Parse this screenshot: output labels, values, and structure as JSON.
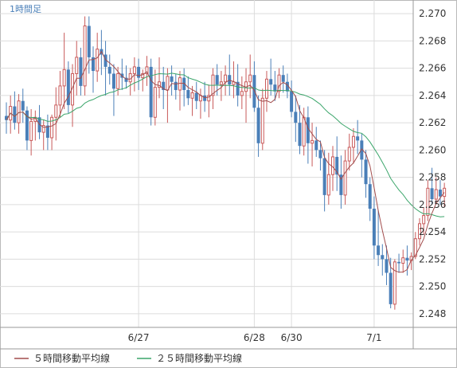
{
  "chart_data": {
    "type": "candlestick",
    "timeframe_label": "1時間足",
    "ylim": [
      2.247,
      2.271
    ],
    "y_ticks": [
      "2.248",
      "2.250",
      "2.252",
      "2.254",
      "2.256",
      "2.258",
      "2.260",
      "2.262",
      "2.264",
      "2.266",
      "2.268",
      "2.270"
    ],
    "x_ticks": [
      {
        "label": "6/27",
        "index": 32
      },
      {
        "label": "6/28",
        "index": 60
      },
      {
        "label": "6/30",
        "index": 69
      },
      {
        "label": "7/1",
        "index": 89
      }
    ],
    "legend": [
      {
        "label": "５時間移動平均線",
        "color": "#a24d4d"
      },
      {
        "label": "２５時間移動平均線",
        "color": "#3aa56a"
      }
    ],
    "colors": {
      "up": "#c85a5a",
      "down": "#4a7fb8",
      "ma5": "#a24d4d",
      "ma25": "#3aa56a",
      "grid": "#dcdcdc"
    },
    "candles": [
      [
        2.2625,
        2.2635,
        2.2612,
        2.2622
      ],
      [
        2.2622,
        2.264,
        2.2612,
        2.2632
      ],
      [
        2.2632,
        2.2643,
        2.2615,
        2.262
      ],
      [
        2.262,
        2.2641,
        2.2612,
        2.2636
      ],
      [
        2.2636,
        2.2645,
        2.262,
        2.2629
      ],
      [
        2.2629,
        2.2632,
        2.26,
        2.2607
      ],
      [
        2.2607,
        2.263,
        2.2596,
        2.2621
      ],
      [
        2.2621,
        2.2629,
        2.2607,
        2.2624
      ],
      [
        2.2624,
        2.2633,
        2.2608,
        2.2613
      ],
      [
        2.2613,
        2.2622,
        2.26,
        2.2618
      ],
      [
        2.2618,
        2.2626,
        2.26,
        2.2609
      ],
      [
        2.2609,
        2.2626,
        2.26,
        2.2624
      ],
      [
        2.2624,
        2.2646,
        2.2607,
        2.2633
      ],
      [
        2.2633,
        2.2658,
        2.2624,
        2.2647
      ],
      [
        2.2647,
        2.2686,
        2.263,
        2.2659
      ],
      [
        2.2659,
        2.2665,
        2.2627,
        2.2633
      ],
      [
        2.2633,
        2.2663,
        2.2617,
        2.2656
      ],
      [
        2.2656,
        2.268,
        2.264,
        2.2668
      ],
      [
        2.2668,
        2.2675,
        2.264,
        2.2647
      ],
      [
        2.2647,
        2.2698,
        2.264,
        2.2691
      ],
      [
        2.2691,
        2.2698,
        2.2656,
        2.2668
      ],
      [
        2.2668,
        2.2676,
        2.2642,
        2.2658
      ],
      [
        2.2658,
        2.2686,
        2.265,
        2.2674
      ],
      [
        2.2674,
        2.2688,
        2.2655,
        2.267
      ],
      [
        2.267,
        2.268,
        2.264,
        2.2661
      ],
      [
        2.2661,
        2.267,
        2.2648,
        2.2656
      ],
      [
        2.2656,
        2.2663,
        2.2625,
        2.2645
      ],
      [
        2.2645,
        2.2661,
        2.264,
        2.2656
      ],
      [
        2.2656,
        2.2667,
        2.2644,
        2.2653
      ],
      [
        2.2653,
        2.2662,
        2.2645,
        2.265
      ],
      [
        2.265,
        2.266,
        2.264,
        2.2656
      ],
      [
        2.2656,
        2.2668,
        2.2643,
        2.2661
      ],
      [
        2.2661,
        2.2667,
        2.2644,
        2.2653
      ],
      [
        2.2653,
        2.2659,
        2.2643,
        2.2656
      ],
      [
        2.2656,
        2.2669,
        2.2647,
        2.2661
      ],
      [
        2.2661,
        2.2667,
        2.2618,
        2.2624
      ],
      [
        2.2624,
        2.2659,
        2.2618,
        2.2646
      ],
      [
        2.2646,
        2.2668,
        2.2638,
        2.265
      ],
      [
        2.265,
        2.2661,
        2.263,
        2.2644
      ],
      [
        2.2644,
        2.266,
        2.262,
        2.2654
      ],
      [
        2.2654,
        2.2662,
        2.264,
        2.265
      ],
      [
        2.265,
        2.2656,
        2.2637,
        2.2644
      ],
      [
        2.2644,
        2.2658,
        2.2629,
        2.2653
      ],
      [
        2.2653,
        2.266,
        2.2632,
        2.2644
      ],
      [
        2.2644,
        2.2654,
        2.2633,
        2.2638
      ],
      [
        2.2638,
        2.2647,
        2.2625,
        2.2642
      ],
      [
        2.2642,
        2.265,
        2.263,
        2.2636
      ],
      [
        2.2636,
        2.2645,
        2.2623,
        2.264
      ],
      [
        2.264,
        2.265,
        2.2628,
        2.2636
      ],
      [
        2.2636,
        2.2648,
        2.2624,
        2.264
      ],
      [
        2.264,
        2.266,
        2.263,
        2.2655
      ],
      [
        2.2655,
        2.2663,
        2.264,
        2.2648
      ],
      [
        2.2648,
        2.2658,
        2.2636,
        2.265
      ],
      [
        2.265,
        2.2662,
        2.264,
        2.2655
      ],
      [
        2.2655,
        2.267,
        2.264,
        2.2648
      ],
      [
        2.2648,
        2.2665,
        2.2638,
        2.265
      ],
      [
        2.265,
        2.2663,
        2.2632,
        2.264
      ],
      [
        2.264,
        2.2654,
        2.263,
        2.2643
      ],
      [
        2.2643,
        2.266,
        2.262,
        2.265
      ],
      [
        2.265,
        2.267,
        2.2638,
        2.2655
      ],
      [
        2.2655,
        2.2665,
        2.2628,
        2.2631
      ],
      [
        2.2631,
        2.264,
        2.2595,
        2.2605
      ],
      [
        2.2605,
        2.2645,
        2.26,
        2.2638
      ],
      [
        2.2638,
        2.2658,
        2.2628,
        2.2652
      ],
      [
        2.2652,
        2.2667,
        2.264,
        2.2648
      ],
      [
        2.2648,
        2.2658,
        2.2636,
        2.2643
      ],
      [
        2.2643,
        2.266,
        2.2638,
        2.2655
      ],
      [
        2.2655,
        2.2662,
        2.2642,
        2.265
      ],
      [
        2.265,
        2.2656,
        2.2638,
        2.2643
      ],
      [
        2.2643,
        2.2651,
        2.2624,
        2.2628
      ],
      [
        2.2628,
        2.264,
        2.2606,
        2.262
      ],
      [
        2.262,
        2.2633,
        2.2597,
        2.2603
      ],
      [
        2.2603,
        2.2631,
        2.2596,
        2.2624
      ],
      [
        2.2624,
        2.2632,
        2.259,
        2.2605
      ],
      [
        2.2605,
        2.262,
        2.2588,
        2.2607
      ],
      [
        2.2607,
        2.2617,
        2.2595,
        2.26
      ],
      [
        2.26,
        2.2607,
        2.2585,
        2.2594
      ],
      [
        2.2594,
        2.26,
        2.2555,
        2.2567
      ],
      [
        2.2567,
        2.2598,
        2.256,
        2.2582
      ],
      [
        2.2582,
        2.2603,
        2.257,
        2.2595
      ],
      [
        2.2595,
        2.261,
        2.257,
        2.2582
      ],
      [
        2.2582,
        2.2596,
        2.2557,
        2.2567
      ],
      [
        2.2567,
        2.26,
        2.256,
        2.2592
      ],
      [
        2.2592,
        2.2612,
        2.2585,
        2.2602
      ],
      [
        2.2602,
        2.2616,
        2.259,
        2.261
      ],
      [
        2.261,
        2.2622,
        2.2597,
        2.2607
      ],
      [
        2.2607,
        2.2612,
        2.258,
        2.2593
      ],
      [
        2.2593,
        2.26,
        2.2565,
        2.2575
      ],
      [
        2.2575,
        2.258,
        2.2548,
        2.2557
      ],
      [
        2.2557,
        2.2566,
        2.252,
        2.253
      ],
      [
        2.253,
        2.2556,
        2.2515,
        2.2523
      ],
      [
        2.2523,
        2.2531,
        2.2508,
        2.252
      ],
      [
        2.252,
        2.253,
        2.2501,
        2.251
      ],
      [
        2.251,
        2.2521,
        2.2484,
        2.2487
      ],
      [
        2.2487,
        2.252,
        2.2483,
        2.2518
      ],
      [
        2.2518,
        2.2524,
        2.251,
        2.2517
      ],
      [
        2.2517,
        2.2527,
        2.251,
        2.2521
      ],
      [
        2.2521,
        2.253,
        2.2508,
        2.2519
      ],
      [
        2.2519,
        2.2525,
        2.2512,
        2.2522
      ],
      [
        2.2522,
        2.254,
        2.252,
        2.2535
      ],
      [
        2.2535,
        2.255,
        2.253,
        2.2546
      ],
      [
        2.2546,
        2.2558,
        2.2538,
        2.2552
      ],
      [
        2.2552,
        2.2578,
        2.2548,
        2.2572
      ],
      [
        2.2572,
        2.2587,
        2.256,
        2.2564
      ],
      [
        2.2564,
        2.258,
        2.256,
        2.2571
      ],
      [
        2.2571,
        2.2578,
        2.256,
        2.2566
      ],
      [
        2.2566,
        2.2576,
        2.2558,
        2.2572
      ]
    ]
  }
}
